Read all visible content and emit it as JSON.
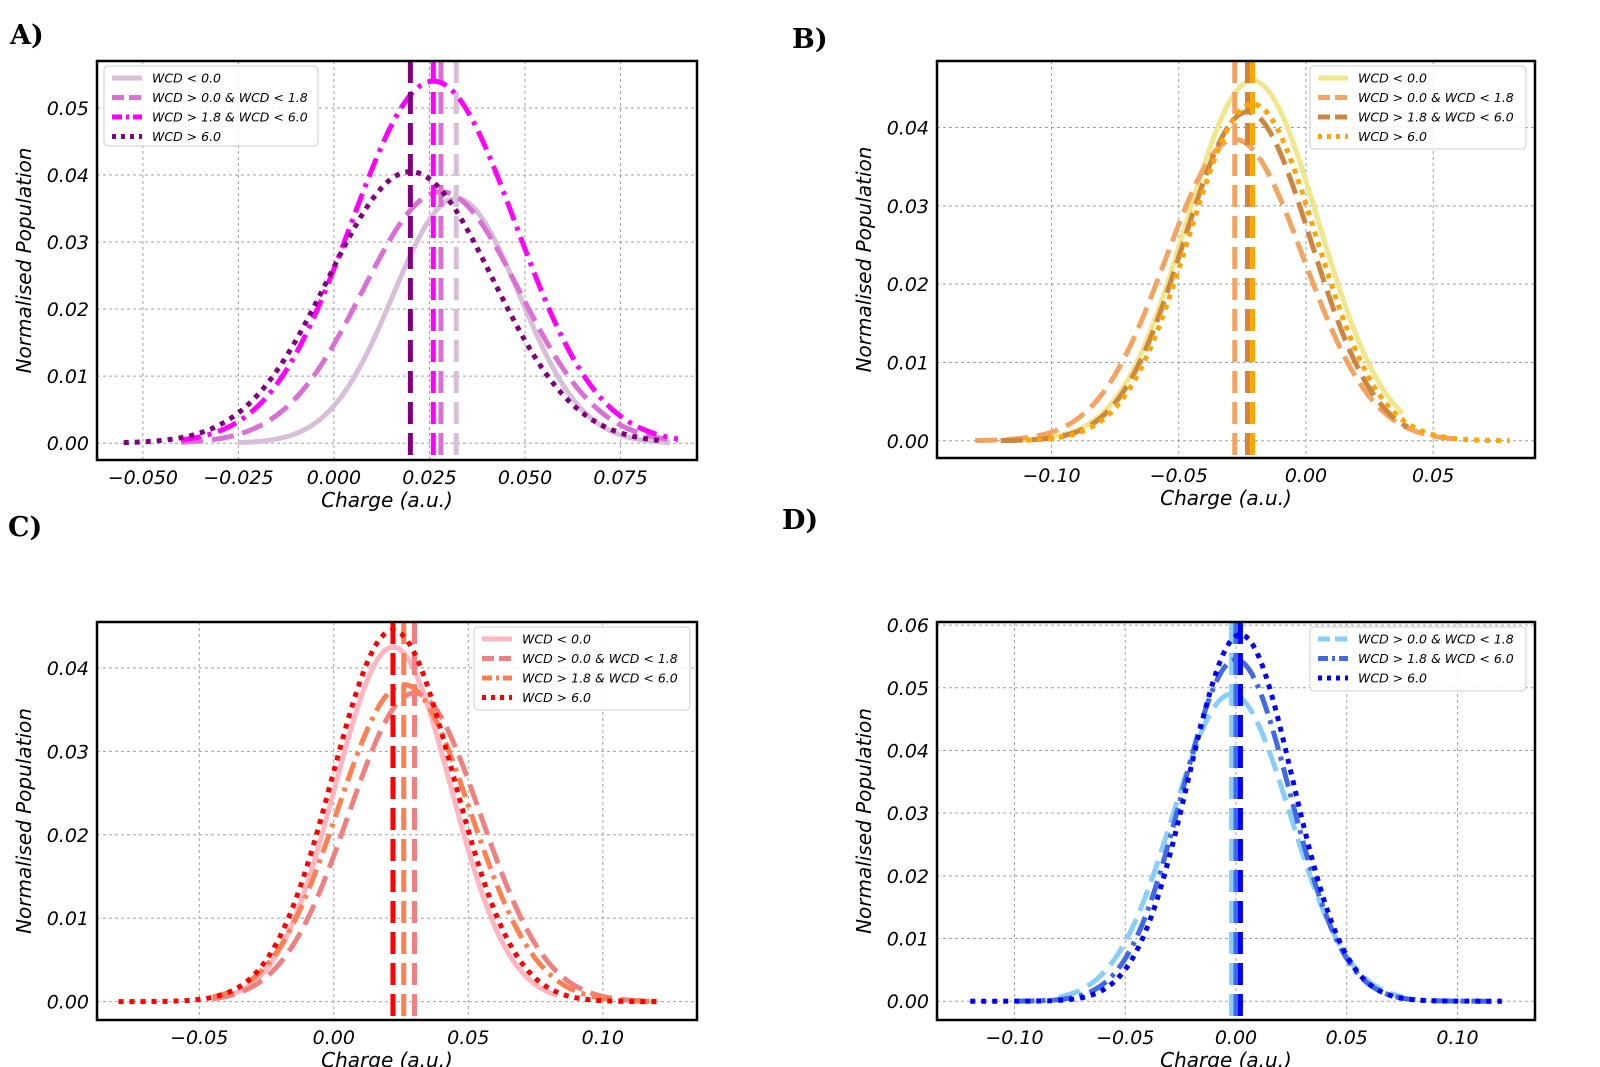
{
  "chart_data": [
    {
      "panel": "A)",
      "type": "line",
      "title": "",
      "xlabel": "Charge (a.u.)",
      "ylabel": "Normalised Population",
      "xlim": [
        -0.062,
        0.095
      ],
      "ylim": [
        -0.0025,
        0.057
      ],
      "xticks": [
        -0.05,
        -0.025,
        0.0,
        0.025,
        0.05,
        0.075
      ],
      "xtick_labels": [
        "−0.050",
        "−0.025",
        "0.000",
        "0.025",
        "0.050",
        "0.075"
      ],
      "yticks": [
        0.0,
        0.01,
        0.02,
        0.03,
        0.04,
        0.05
      ],
      "ytick_labels": [
        "0.00",
        "0.01",
        "0.02",
        "0.03",
        "0.04",
        "0.05"
      ],
      "grid": true,
      "legend_position": "top-left",
      "series": [
        {
          "name": "WCD < 0.0",
          "color": "#d8bfd8",
          "style": "solid",
          "mean": 0.032,
          "sd": 0.0165,
          "peak": 0.0365,
          "x_range": [
            -0.025,
            0.088
          ]
        },
        {
          "name": "WCD > 0.0 & WCD < 1.8",
          "color": "#da70d6",
          "style": "dashed",
          "mean": 0.028,
          "sd": 0.0205,
          "peak": 0.0375,
          "x_range": [
            -0.04,
            0.09
          ]
        },
        {
          "name": "WCD > 1.8 & WCD < 6.0",
          "color": "#ff00ff",
          "style": "dashdot",
          "mean": 0.026,
          "sd": 0.0215,
          "peak": 0.054,
          "x_range": [
            -0.04,
            0.09
          ]
        },
        {
          "name": "WCD > 6.0",
          "color": "#800080",
          "style": "dotted",
          "mean": 0.02,
          "sd": 0.0215,
          "peak": 0.0405,
          "x_range": [
            -0.055,
            0.085
          ]
        }
      ]
    },
    {
      "panel": "B)",
      "type": "line",
      "title": "",
      "xlabel": "Charge (a.u.)",
      "ylabel": "Normalised Population",
      "xlim": [
        -0.145,
        0.09
      ],
      "ylim": [
        -0.0022,
        0.0485
      ],
      "xticks": [
        -0.1,
        -0.05,
        0.0,
        0.05
      ],
      "xtick_labels": [
        "−0.10",
        "−0.05",
        "0.00",
        "0.05"
      ],
      "yticks": [
        0.0,
        0.01,
        0.02,
        0.03,
        0.04
      ],
      "ytick_labels": [
        "0.00",
        "0.01",
        "0.02",
        "0.03",
        "0.04"
      ],
      "grid": true,
      "legend_position": "top-right",
      "series": [
        {
          "name": "WCD < 0.0",
          "color": "#f0e68c",
          "style": "solid",
          "mean": -0.021,
          "sd": 0.026,
          "peak": 0.046,
          "x_range": [
            -0.12,
            0.038
          ]
        },
        {
          "name": "WCD > 0.0 & WCD < 1.8",
          "color": "#f4a460",
          "style": "dashed",
          "mean": -0.028,
          "sd": 0.027,
          "peak": 0.0385,
          "x_range": [
            -0.13,
            0.058
          ]
        },
        {
          "name": "WCD > 1.8 & WCD < 6.0",
          "color": "#cd853f",
          "style": "dashed",
          "mean": -0.023,
          "sd": 0.025,
          "peak": 0.042,
          "x_range": [
            -0.12,
            0.04
          ]
        },
        {
          "name": "WCD > 6.0",
          "color": "#ffa500",
          "style": "dotted",
          "mean": -0.021,
          "sd": 0.025,
          "peak": 0.043,
          "x_range": [
            -0.11,
            0.08
          ]
        }
      ]
    },
    {
      "panel": "C)",
      "type": "line",
      "title": "",
      "xlabel": "Charge (a.u.)",
      "ylabel": "Normalised Population",
      "xlim": [
        -0.088,
        0.135
      ],
      "ylim": [
        -0.0022,
        0.0455
      ],
      "xticks": [
        -0.05,
        0.0,
        0.05,
        0.1
      ],
      "xtick_labels": [
        "−0.05",
        "0.00",
        "0.05",
        "0.10"
      ],
      "yticks": [
        0.0,
        0.01,
        0.02,
        0.03,
        0.04
      ],
      "ytick_labels": [
        "0.00",
        "0.01",
        "0.02",
        "0.03",
        "0.04"
      ],
      "grid": true,
      "legend_position": "top-right",
      "series": [
        {
          "name": "WCD < 0.0",
          "color": "#ffb6c1",
          "style": "solid",
          "mean": 0.022,
          "sd": 0.0215,
          "peak": 0.0425,
          "x_range": [
            -0.045,
            0.083
          ]
        },
        {
          "name": "WCD > 0.0 & WCD < 1.8",
          "color": "#f08080",
          "style": "dashed",
          "mean": 0.03,
          "sd": 0.0245,
          "peak": 0.037,
          "x_range": [
            -0.045,
            0.12
          ]
        },
        {
          "name": "WCD > 1.8 & WCD < 6.0",
          "color": "#ff7f50",
          "style": "dashdot",
          "mean": 0.026,
          "sd": 0.0245,
          "peak": 0.038,
          "x_range": [
            -0.045,
            0.12
          ]
        },
        {
          "name": "WCD > 6.0",
          "color": "#ff0000",
          "style": "dotted",
          "mean": 0.022,
          "sd": 0.0225,
          "peak": 0.0445,
          "x_range": [
            -0.08,
            0.12
          ]
        }
      ]
    },
    {
      "panel": "D)",
      "type": "line",
      "title": "",
      "xlabel": "Charge (a.u.)",
      "ylabel": "Normalised Population",
      "xlim": [
        -0.135,
        0.135
      ],
      "ylim": [
        -0.003,
        0.0605
      ],
      "xticks": [
        -0.1,
        -0.05,
        0.0,
        0.05,
        0.1
      ],
      "xtick_labels": [
        "−0.10",
        "−0.05",
        "0.00",
        "0.05",
        "0.10"
      ],
      "yticks": [
        0.0,
        0.01,
        0.02,
        0.03,
        0.04,
        0.05,
        0.06
      ],
      "ytick_labels": [
        "0.00",
        "0.01",
        "0.02",
        "0.03",
        "0.04",
        "0.05",
        "0.06"
      ],
      "grid": true,
      "legend_position": "top-right",
      "series": [
        {
          "name": "WCD > 0.0 & WCD < 1.8",
          "color": "#87cefa",
          "style": "dashed",
          "mean": -0.002,
          "sd": 0.0265,
          "peak": 0.049,
          "x_range": [
            -0.08,
            0.075
          ]
        },
        {
          "name": "WCD > 1.8 & WCD < 6.0",
          "color": "#4169e1",
          "style": "dashdot",
          "mean": 0.0,
          "sd": 0.0245,
          "peak": 0.0545,
          "x_range": [
            -0.1,
            0.12
          ]
        },
        {
          "name": "WCD > 6.0",
          "color": "#0000ff",
          "style": "dotted",
          "mean": 0.002,
          "sd": 0.0235,
          "peak": 0.0585,
          "x_range": [
            -0.12,
            0.12
          ]
        }
      ]
    }
  ]
}
